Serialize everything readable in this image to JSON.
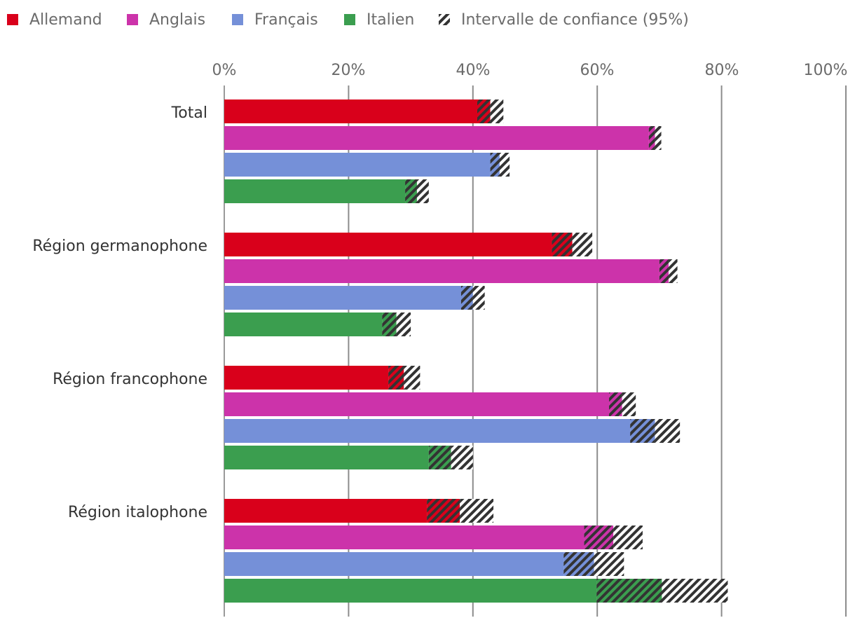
{
  "chart_data": {
    "type": "bar",
    "orientation": "horizontal",
    "title": "",
    "xlabel": "",
    "ylabel": "",
    "xlim": [
      0,
      100
    ],
    "x_ticks": [
      "0%",
      "20%",
      "40%",
      "60%",
      "80%",
      "100%"
    ],
    "grid": true,
    "legend_position": "top",
    "categories": [
      "Total",
      "Région germanophone",
      "Région francophone",
      "Région italophone"
    ],
    "series": [
      {
        "name": "Allemand",
        "color": "#d9001b",
        "values": [
          42.8,
          56.0,
          28.9,
          37.9
        ],
        "ci": [
          [
            40.7,
            44.9
          ],
          [
            52.7,
            59.2
          ],
          [
            26.4,
            31.5
          ],
          [
            32.6,
            43.3
          ]
        ]
      },
      {
        "name": "Anglais",
        "color": "#cc33aa",
        "values": [
          69.3,
          71.5,
          64.0,
          62.6
        ],
        "ci": [
          [
            68.3,
            70.3
          ],
          [
            70.0,
            72.9
          ],
          [
            61.9,
            66.2
          ],
          [
            57.9,
            67.3
          ]
        ]
      },
      {
        "name": "Français",
        "color": "#7590d8",
        "values": [
          44.3,
          40.0,
          69.3,
          59.5
        ],
        "ci": [
          [
            42.8,
            45.9
          ],
          [
            38.1,
            41.9
          ],
          [
            65.3,
            73.3
          ],
          [
            54.6,
            64.3
          ]
        ]
      },
      {
        "name": "Italien",
        "color": "#3b9e4f",
        "values": [
          31.0,
          27.7,
          36.5,
          70.4
        ],
        "ci": [
          [
            29.1,
            32.9
          ],
          [
            25.4,
            30.0
          ],
          [
            32.9,
            40.0
          ],
          [
            59.9,
            81.0
          ]
        ]
      }
    ],
    "ci_legend_label": "Intervalle de confiance (95%)"
  }
}
